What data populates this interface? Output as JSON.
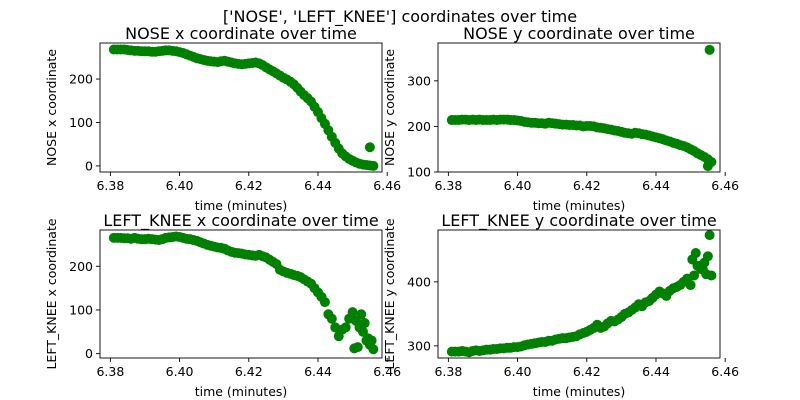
{
  "figure": {
    "suptitle": "['NOSE', 'LEFT_KNEE'] coordinates over time"
  },
  "colors": {
    "marker": "#008000",
    "axes": "#000000",
    "background": "#ffffff"
  },
  "chart_data": [
    {
      "type": "scatter",
      "title": "NOSE x coordinate over time",
      "xlabel": "time (minutes)",
      "ylabel": "NOSE x coordinate",
      "xlim": [
        6.377,
        6.4585
      ],
      "ylim": [
        -14,
        283
      ],
      "xticks": [
        6.38,
        6.4,
        6.42,
        6.44,
        6.46
      ],
      "xtick_labels": [
        "6.38",
        "6.40",
        "6.42",
        "6.44",
        "6.46"
      ],
      "yticks": [
        0,
        100,
        200
      ],
      "ytick_labels": [
        "0",
        "100",
        "200"
      ],
      "series": [
        {
          "x": [
            6.381,
            6.382,
            6.383,
            6.384,
            6.385,
            6.386,
            6.387,
            6.388,
            6.389,
            6.39,
            6.391,
            6.392,
            6.393,
            6.394,
            6.395,
            6.396,
            6.397,
            6.398,
            6.399,
            6.4,
            6.401,
            6.402,
            6.403,
            6.404,
            6.405,
            6.406,
            6.407,
            6.408,
            6.409,
            6.41,
            6.411,
            6.412,
            6.413,
            6.414,
            6.415,
            6.416,
            6.417,
            6.418,
            6.419,
            6.42,
            6.421,
            6.422,
            6.423,
            6.424,
            6.425,
            6.426,
            6.427,
            6.428,
            6.429,
            6.43,
            6.431,
            6.432,
            6.433,
            6.434,
            6.435,
            6.436,
            6.437,
            6.438,
            6.439,
            6.44,
            6.441,
            6.442,
            6.443,
            6.444,
            6.445,
            6.446,
            6.447,
            6.448,
            6.449,
            6.45,
            6.451,
            6.452,
            6.453,
            6.454,
            6.455,
            6.456,
            6.455
          ],
          "y": [
            268,
            268,
            268,
            268,
            267,
            266,
            265,
            265,
            264,
            264,
            264,
            263,
            263,
            264,
            265,
            266,
            266,
            265,
            264,
            262,
            260,
            257,
            254,
            251,
            248,
            246,
            244,
            242,
            241,
            240,
            239,
            241,
            242,
            240,
            238,
            236,
            235,
            234,
            235,
            236,
            237,
            238,
            236,
            232,
            227,
            222,
            218,
            213,
            208,
            203,
            199,
            194,
            188,
            180,
            171,
            163,
            156,
            148,
            136,
            124,
            110,
            97,
            82,
            67,
            53,
            40,
            29,
            22,
            16,
            12,
            8,
            5,
            3,
            2,
            1,
            0,
            43
          ]
        }
      ]
    },
    {
      "type": "scatter",
      "title": "NOSE y coordinate over time",
      "xlabel": "time (minutes)",
      "ylabel": "NOSE y coordinate",
      "xlim": [
        6.377,
        6.4585
      ],
      "ylim": [
        100,
        383
      ],
      "xticks": [
        6.38,
        6.4,
        6.42,
        6.44,
        6.46
      ],
      "xtick_labels": [
        "6.38",
        "6.40",
        "6.42",
        "6.44",
        "6.46"
      ],
      "yticks": [
        100,
        200,
        300
      ],
      "ytick_labels": [
        "100",
        "200",
        "300"
      ],
      "series": [
        {
          "x": [
            6.381,
            6.382,
            6.383,
            6.384,
            6.385,
            6.386,
            6.387,
            6.388,
            6.389,
            6.39,
            6.391,
            6.392,
            6.393,
            6.394,
            6.395,
            6.396,
            6.397,
            6.398,
            6.399,
            6.4,
            6.401,
            6.402,
            6.403,
            6.404,
            6.405,
            6.406,
            6.407,
            6.408,
            6.409,
            6.41,
            6.411,
            6.412,
            6.413,
            6.414,
            6.415,
            6.416,
            6.417,
            6.418,
            6.419,
            6.42,
            6.421,
            6.422,
            6.423,
            6.424,
            6.425,
            6.426,
            6.427,
            6.428,
            6.429,
            6.43,
            6.431,
            6.432,
            6.433,
            6.434,
            6.435,
            6.436,
            6.437,
            6.438,
            6.439,
            6.44,
            6.441,
            6.442,
            6.443,
            6.444,
            6.445,
            6.446,
            6.447,
            6.448,
            6.449,
            6.45,
            6.451,
            6.452,
            6.453,
            6.454,
            6.455,
            6.456,
            6.455,
            6.4555
          ],
          "y": [
            214,
            214,
            214,
            215,
            215,
            214,
            215,
            214,
            215,
            214,
            214,
            214,
            215,
            214,
            215,
            215,
            215,
            214,
            214,
            213,
            212,
            210,
            209,
            208,
            208,
            207,
            207,
            206,
            208,
            207,
            206,
            205,
            204,
            204,
            203,
            203,
            202,
            202,
            200,
            201,
            201,
            200,
            198,
            197,
            196,
            194,
            193,
            191,
            190,
            188,
            186,
            185,
            184,
            186,
            185,
            183,
            182,
            180,
            178,
            176,
            174,
            172,
            169,
            167,
            164,
            162,
            159,
            157,
            154,
            150,
            146,
            141,
            137,
            133,
            128,
            122,
            113,
            368
          ]
        }
      ]
    },
    {
      "type": "scatter",
      "title": "LEFT_KNEE x coordinate over time",
      "xlabel": "time (minutes)",
      "ylabel": "LEFT_KNEE x coordinate",
      "xlim": [
        6.377,
        6.4585
      ],
      "ylim": [
        -10,
        283
      ],
      "xticks": [
        6.38,
        6.4,
        6.42,
        6.44,
        6.46
      ],
      "xtick_labels": [
        "6.38",
        "6.40",
        "6.42",
        "6.44",
        "6.46"
      ],
      "yticks": [
        0,
        100,
        200
      ],
      "ytick_labels": [
        "0",
        "100",
        "200"
      ],
      "series": [
        {
          "x": [
            6.381,
            6.382,
            6.383,
            6.384,
            6.385,
            6.386,
            6.387,
            6.388,
            6.389,
            6.39,
            6.391,
            6.392,
            6.393,
            6.394,
            6.395,
            6.396,
            6.397,
            6.398,
            6.399,
            6.4,
            6.401,
            6.402,
            6.403,
            6.404,
            6.405,
            6.406,
            6.407,
            6.408,
            6.409,
            6.41,
            6.411,
            6.412,
            6.413,
            6.414,
            6.415,
            6.416,
            6.417,
            6.418,
            6.419,
            6.42,
            6.421,
            6.422,
            6.423,
            6.424,
            6.425,
            6.426,
            6.427,
            6.428,
            6.429,
            6.43,
            6.431,
            6.432,
            6.433,
            6.434,
            6.435,
            6.436,
            6.437,
            6.438,
            6.439,
            6.44,
            6.441,
            6.442,
            6.443,
            6.444,
            6.445,
            6.446,
            6.447,
            6.448,
            6.449,
            6.45,
            6.451,
            6.452,
            6.453,
            6.454,
            6.455,
            6.456,
            6.4505,
            6.4515,
            6.4525,
            6.4535,
            6.4545,
            6.4555
          ],
          "y": [
            265,
            265,
            265,
            264,
            264,
            263,
            265,
            263,
            262,
            262,
            263,
            262,
            261,
            260,
            262,
            265,
            266,
            267,
            268,
            267,
            265,
            263,
            262,
            260,
            258,
            255,
            252,
            249,
            247,
            245,
            243,
            242,
            240,
            236,
            233,
            231,
            230,
            229,
            227,
            226,
            225,
            224,
            226,
            223,
            220,
            215,
            210,
            205,
            192,
            188,
            185,
            183,
            180,
            178,
            175,
            170,
            165,
            160,
            150,
            140,
            130,
            118,
            90,
            80,
            60,
            40,
            55,
            60,
            80,
            95,
            75,
            60,
            50,
            30,
            20,
            10,
            12,
            15,
            90,
            70,
            35,
            30
          ]
        }
      ]
    },
    {
      "type": "scatter",
      "title": "LEFT_KNEE y coordinate over time",
      "xlabel": "time (minutes)",
      "ylabel": "LEFT_KNEE y coordinate",
      "xlim": [
        6.377,
        6.4585
      ],
      "ylim": [
        281,
        481
      ],
      "xticks": [
        6.38,
        6.4,
        6.42,
        6.44,
        6.46
      ],
      "xtick_labels": [
        "6.38",
        "6.40",
        "6.42",
        "6.44",
        "6.46"
      ],
      "yticks": [
        300,
        400
      ],
      "ytick_labels": [
        "300",
        "400"
      ],
      "series": [
        {
          "x": [
            6.381,
            6.382,
            6.383,
            6.384,
            6.385,
            6.386,
            6.387,
            6.388,
            6.389,
            6.39,
            6.391,
            6.392,
            6.393,
            6.394,
            6.395,
            6.396,
            6.397,
            6.398,
            6.399,
            6.4,
            6.401,
            6.402,
            6.403,
            6.404,
            6.405,
            6.406,
            6.407,
            6.408,
            6.409,
            6.41,
            6.411,
            6.412,
            6.413,
            6.414,
            6.415,
            6.416,
            6.417,
            6.418,
            6.419,
            6.42,
            6.421,
            6.422,
            6.423,
            6.424,
            6.425,
            6.426,
            6.427,
            6.428,
            6.429,
            6.43,
            6.431,
            6.432,
            6.433,
            6.434,
            6.435,
            6.436,
            6.437,
            6.438,
            6.439,
            6.44,
            6.441,
            6.442,
            6.443,
            6.444,
            6.445,
            6.446,
            6.447,
            6.448,
            6.449,
            6.45,
            6.451,
            6.452,
            6.453,
            6.454,
            6.455,
            6.456,
            6.4505,
            6.4515,
            6.4525,
            6.4535,
            6.4545,
            6.4555
          ],
          "y": [
            291,
            291,
            291,
            292,
            291,
            290,
            292,
            293,
            292,
            293,
            294,
            294,
            295,
            295,
            296,
            296,
            297,
            297,
            298,
            298,
            299,
            301,
            302,
            303,
            304,
            305,
            306,
            306,
            308,
            308,
            310,
            311,
            312,
            312,
            313,
            314,
            315,
            318,
            320,
            322,
            325,
            328,
            333,
            328,
            330,
            335,
            339,
            338,
            341,
            345,
            350,
            352,
            356,
            360,
            365,
            362,
            368,
            370,
            375,
            380,
            385,
            382,
            378,
            386,
            390,
            392,
            395,
            400,
            405,
            395,
            410,
            425,
            420,
            430,
            440,
            410,
            435,
            445,
            425,
            420,
            412,
            473
          ]
        }
      ]
    }
  ]
}
